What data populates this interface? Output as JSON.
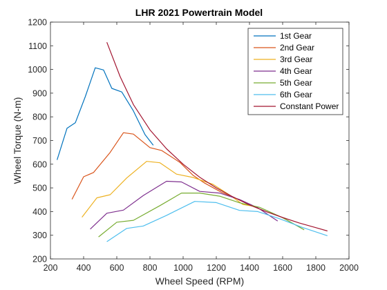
{
  "chart_data": {
    "type": "line",
    "title": "LHR 2021 Powertrain Model",
    "xlabel": "Wheel Speed (RPM)",
    "ylabel": "Wheel Torque (N-m)",
    "xlim": [
      200,
      2000
    ],
    "ylim": [
      200,
      1200
    ],
    "xticks": [
      "200",
      "400",
      "600",
      "800",
      "1000",
      "1200",
      "1400",
      "1600",
      "1800",
      "2000"
    ],
    "yticks": [
      "200",
      "300",
      "400",
      "500",
      "600",
      "700",
      "800",
      "900",
      "1000",
      "1100",
      "1200"
    ],
    "grid": false,
    "legend_position": "top-right",
    "series": [
      {
        "name": "1st Gear",
        "color": "#0072BD",
        "points": [
          [
            240,
            618
          ],
          [
            300,
            752
          ],
          [
            350,
            775
          ],
          [
            410,
            885
          ],
          [
            470,
            1007
          ],
          [
            520,
            998
          ],
          [
            570,
            920
          ],
          [
            630,
            905
          ],
          [
            700,
            825
          ],
          [
            770,
            725
          ],
          [
            820,
            680
          ]
        ]
      },
      {
        "name": "2nd Gear",
        "color": "#D95319",
        "points": [
          [
            330,
            452
          ],
          [
            400,
            547
          ],
          [
            460,
            565
          ],
          [
            560,
            650
          ],
          [
            640,
            733
          ],
          [
            700,
            727
          ],
          [
            800,
            670
          ],
          [
            870,
            658
          ],
          [
            980,
            608
          ],
          [
            1060,
            553
          ],
          [
            1130,
            520
          ],
          [
            1230,
            482
          ],
          [
            1300,
            461
          ]
        ]
      },
      {
        "name": "3rd Gear",
        "color": "#EDB120",
        "points": [
          [
            390,
            376
          ],
          [
            480,
            458
          ],
          [
            560,
            471
          ],
          [
            660,
            542
          ],
          [
            780,
            612
          ],
          [
            860,
            606
          ],
          [
            960,
            558
          ],
          [
            1060,
            544
          ],
          [
            1180,
            515
          ],
          [
            1280,
            470
          ],
          [
            1360,
            430
          ],
          [
            1430,
            422
          ]
        ]
      },
      {
        "name": "4th Gear",
        "color": "#7E2F8E",
        "points": [
          [
            440,
            326
          ],
          [
            540,
            393
          ],
          [
            640,
            406
          ],
          [
            760,
            468
          ],
          [
            900,
            528
          ],
          [
            990,
            525
          ],
          [
            1100,
            485
          ],
          [
            1220,
            478
          ],
          [
            1340,
            451
          ],
          [
            1450,
            416
          ],
          [
            1570,
            360
          ]
        ]
      },
      {
        "name": "5th Gear",
        "color": "#77AC30",
        "points": [
          [
            490,
            293
          ],
          [
            600,
            355
          ],
          [
            700,
            363
          ],
          [
            860,
            425
          ],
          [
            990,
            478
          ],
          [
            1100,
            478
          ],
          [
            1220,
            465
          ],
          [
            1340,
            437
          ],
          [
            1460,
            418
          ],
          [
            1600,
            374
          ],
          [
            1730,
            323
          ]
        ]
      },
      {
        "name": "6th Gear",
        "color": "#4DBEEE",
        "points": [
          [
            540,
            273
          ],
          [
            660,
            329
          ],
          [
            760,
            339
          ],
          [
            900,
            384
          ],
          [
            1070,
            443
          ],
          [
            1200,
            438
          ],
          [
            1340,
            405
          ],
          [
            1450,
            400
          ],
          [
            1580,
            370
          ],
          [
            1720,
            333
          ],
          [
            1870,
            298
          ]
        ]
      },
      {
        "name": "Constant Power",
        "color": "#A2142F",
        "points": [
          [
            540,
            1115
          ],
          [
            620,
            970
          ],
          [
            700,
            852
          ],
          [
            800,
            745
          ],
          [
            900,
            665
          ],
          [
            1000,
            600
          ],
          [
            1100,
            545
          ],
          [
            1200,
            500
          ],
          [
            1300,
            462
          ],
          [
            1400,
            428
          ],
          [
            1500,
            400
          ],
          [
            1600,
            375
          ],
          [
            1700,
            352
          ],
          [
            1800,
            332
          ],
          [
            1870,
            318
          ]
        ]
      }
    ]
  }
}
